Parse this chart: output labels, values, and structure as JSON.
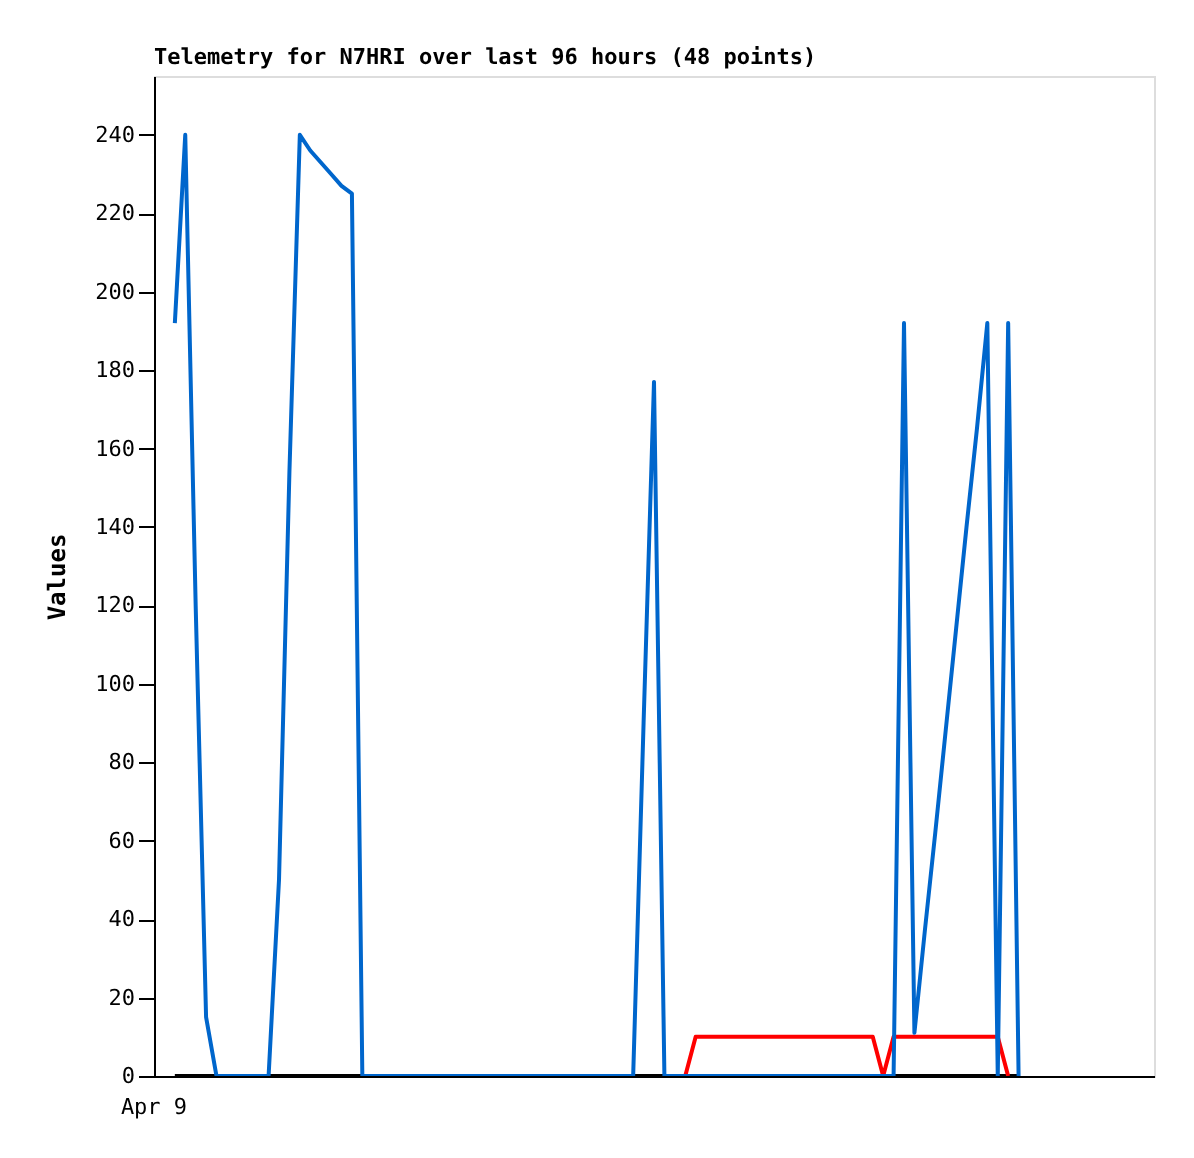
{
  "chart_data": {
    "type": "line",
    "title": "Telemetry for N7HRI over last 96 hours (48 points)",
    "ylabel": "Values",
    "annotations": [
      "Apr 9"
    ],
    "ylim": [
      0,
      255
    ],
    "yticks": [
      0,
      20,
      40,
      60,
      80,
      100,
      120,
      140,
      160,
      180,
      200,
      220,
      240
    ],
    "grid": false,
    "legend": false,
    "marker": "none",
    "line_style": "solid",
    "categories": [
      null,
      null,
      null,
      null,
      null,
      null,
      null,
      null,
      null,
      null,
      null,
      null,
      null,
      null,
      null,
      null,
      null,
      null,
      null,
      null,
      null,
      null,
      null,
      null,
      null,
      null,
      null,
      null,
      null,
      null,
      null,
      null,
      null,
      null,
      null,
      null,
      null,
      null,
      null,
      null,
      null,
      null,
      null,
      null,
      null,
      null,
      null,
      null,
      null,
      null,
      null,
      null,
      null,
      null,
      null,
      null,
      null,
      null,
      null,
      null,
      null,
      null,
      null,
      null,
      null,
      null,
      null,
      null,
      null,
      null,
      null,
      null,
      null,
      null,
      null,
      null,
      null,
      null,
      null,
      null,
      null,
      null,
      null,
      null,
      null,
      null,
      null,
      null,
      null,
      null,
      null,
      null,
      null,
      null,
      null,
      null,
      null
    ],
    "series": [
      {
        "color": "#000000",
        "values": [
          null,
          null,
          0,
          0,
          0,
          0,
          0,
          0,
          0,
          0,
          0,
          0,
          0,
          0,
          0,
          0,
          0,
          0,
          0,
          0,
          0,
          0,
          0,
          0,
          0,
          0,
          0,
          0,
          0,
          0,
          0,
          0,
          0,
          0,
          0,
          0,
          0,
          0,
          0,
          0,
          0,
          0,
          0,
          0,
          0,
          0,
          0,
          0,
          0,
          0,
          0,
          0,
          0,
          0,
          0,
          0,
          0,
          0,
          0,
          0,
          0,
          0,
          0,
          0,
          0,
          0,
          0,
          0,
          0,
          0,
          0,
          0,
          0,
          0,
          0,
          0,
          0,
          0,
          0,
          0,
          0,
          0,
          0,
          0,
          null,
          null,
          null,
          null,
          null,
          null,
          null,
          null,
          null,
          null,
          null,
          null,
          null
        ]
      },
      {
        "color": "#ff0000",
        "values": [
          null,
          null,
          null,
          null,
          null,
          null,
          null,
          null,
          null,
          null,
          null,
          null,
          null,
          null,
          null,
          null,
          null,
          null,
          null,
          null,
          null,
          null,
          null,
          null,
          null,
          null,
          null,
          null,
          null,
          null,
          null,
          null,
          null,
          null,
          null,
          null,
          null,
          null,
          null,
          null,
          null,
          null,
          null,
          null,
          null,
          null,
          null,
          null,
          null,
          null,
          null,
          0,
          10,
          10,
          10,
          10,
          10,
          10,
          10,
          10,
          10,
          10,
          10,
          10,
          10,
          10,
          10,
          10,
          10,
          10,
          0,
          10,
          10,
          10,
          10,
          10,
          10,
          10,
          10,
          10,
          10,
          10,
          0,
          null,
          null,
          null,
          null,
          null,
          null,
          null,
          null,
          null,
          null,
          null,
          null,
          null,
          null
        ]
      },
      {
        "color": "#0066cc",
        "values": [
          null,
          null,
          192,
          240,
          120,
          15,
          0,
          0,
          0,
          0,
          0,
          0,
          50,
          154,
          240,
          236,
          233,
          230,
          227,
          225,
          0,
          0,
          0,
          0,
          0,
          0,
          0,
          0,
          0,
          0,
          0,
          0,
          0,
          0,
          0,
          0,
          0,
          0,
          0,
          0,
          0,
          0,
          0,
          0,
          0,
          0,
          0,
          90,
          177,
          0,
          0,
          0,
          0,
          0,
          0,
          0,
          0,
          0,
          0,
          0,
          0,
          0,
          0,
          0,
          0,
          0,
          0,
          0,
          0,
          0,
          0,
          0,
          192,
          11,
          37,
          62,
          88,
          114,
          140,
          165,
          192,
          0,
          192,
          0,
          null,
          null,
          null,
          null,
          null,
          null,
          null,
          null,
          null,
          null,
          null,
          null,
          null
        ]
      }
    ]
  }
}
